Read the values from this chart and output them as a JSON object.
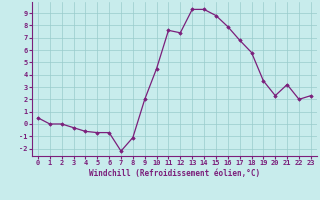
{
  "x": [
    0,
    1,
    2,
    3,
    4,
    5,
    6,
    7,
    8,
    9,
    10,
    11,
    12,
    13,
    14,
    15,
    16,
    17,
    18,
    19,
    20,
    21,
    22,
    23
  ],
  "y": [
    0.5,
    0.0,
    0.0,
    -0.3,
    -0.6,
    -0.7,
    -0.7,
    -2.2,
    -1.1,
    2.0,
    4.5,
    7.6,
    7.4,
    9.3,
    9.3,
    8.8,
    7.9,
    6.8,
    5.8,
    3.5,
    2.3,
    3.2,
    2.0,
    2.3
  ],
  "line_color": "#7b1f7b",
  "marker": "D",
  "markersize": 1.8,
  "linewidth": 0.9,
  "background_color": "#c8ecec",
  "grid_color": "#99cccc",
  "xlabel": "Windchill (Refroidissement éolien,°C)",
  "tick_fontsize": 5.0,
  "xlabel_fontsize": 5.5,
  "xlim": [
    -0.5,
    23.5
  ],
  "ylim": [
    -2.6,
    9.9
  ],
  "yticks": [
    -2,
    -1,
    0,
    1,
    2,
    3,
    4,
    5,
    6,
    7,
    8,
    9
  ],
  "xticks": [
    0,
    1,
    2,
    3,
    4,
    5,
    6,
    7,
    8,
    9,
    10,
    11,
    12,
    13,
    14,
    15,
    16,
    17,
    18,
    19,
    20,
    21,
    22,
    23
  ]
}
